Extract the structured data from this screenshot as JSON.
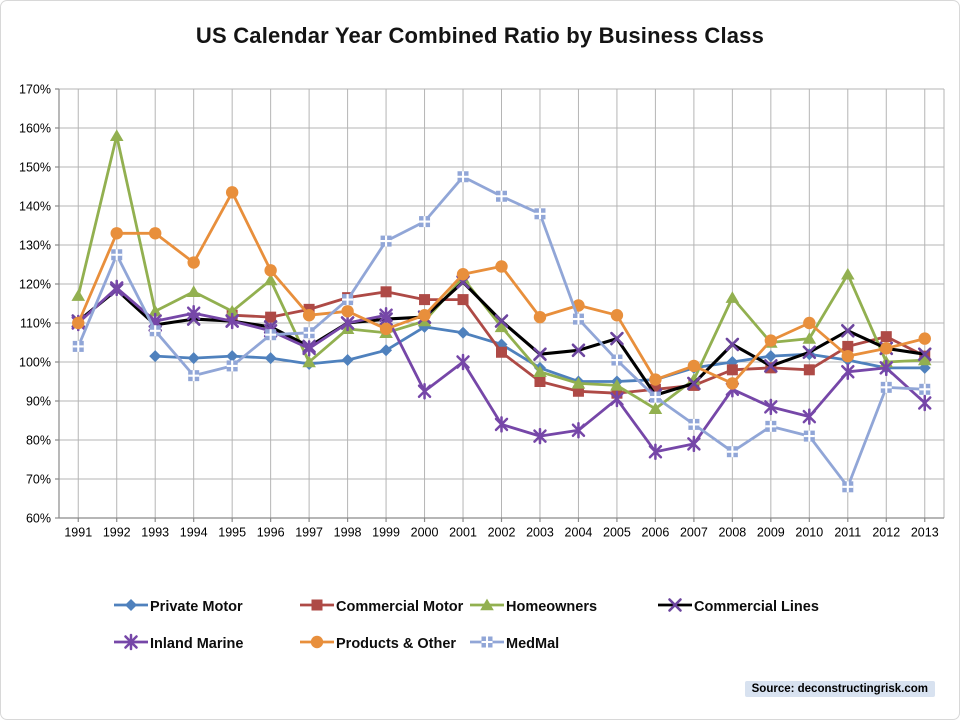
{
  "page": {
    "source_note": "Source: deconstructingrisk.com"
  },
  "chart_data": {
    "type": "line",
    "title": "US Calendar Year Combined Ratio by Business Class",
    "x": [
      1991,
      1992,
      1993,
      1994,
      1995,
      1996,
      1997,
      1998,
      1999,
      2000,
      2001,
      2002,
      2003,
      2004,
      2005,
      2006,
      2007,
      2008,
      2009,
      2010,
      2011,
      2012,
      2013
    ],
    "y_axis": {
      "min": 60,
      "max": 170,
      "step": 10,
      "unit": "%"
    },
    "grid": true,
    "grid_color": "#b5b5b5",
    "axis_color": "#8a8a8a",
    "legend_position": "bottom",
    "series": [
      {
        "name": "Private Motor",
        "color": "#4F81BD",
        "marker": "diamond",
        "values": [
          null,
          null,
          101.5,
          101,
          101.5,
          101,
          99.5,
          100.5,
          103,
          109,
          107.5,
          104.5,
          98.5,
          95,
          95,
          95.5,
          98.5,
          100,
          101.5,
          102,
          100.5,
          98.5,
          98.5
        ]
      },
      {
        "name": "Commercial Motor",
        "color": "#AE4A46",
        "marker": "square",
        "values": [
          null,
          null,
          null,
          null,
          112,
          111.5,
          113.5,
          116.5,
          118,
          116,
          116,
          102.5,
          95,
          92.5,
          92,
          93,
          94,
          98,
          98.5,
          98,
          104,
          106.5,
          101.5
        ]
      },
      {
        "name": "Homeowners",
        "color": "#92B050",
        "marker": "triangle",
        "values": [
          117,
          158,
          113,
          118,
          113,
          121,
          100,
          108.5,
          107.5,
          110.5,
          121.5,
          109,
          97.5,
          94.5,
          94,
          88,
          95.5,
          116.5,
          105,
          106,
          122.5,
          100,
          100.5
        ]
      },
      {
        "name": "Commercial Lines",
        "color": "#000000",
        "marker": "x",
        "marker_color": "#6C459E",
        "values": [
          110.5,
          118.5,
          109.5,
          111,
          110.5,
          109,
          104,
          110,
          111,
          111.5,
          120.5,
          110.5,
          102,
          103,
          106,
          91.5,
          94.5,
          104.5,
          99,
          102.5,
          108,
          103.5,
          102
        ]
      },
      {
        "name": "Inland Marine",
        "color": "#7647A8",
        "marker": "asterisk",
        "values": [
          110,
          119,
          110.5,
          112.5,
          110.5,
          108,
          103.5,
          110,
          112,
          92.5,
          100,
          84,
          81,
          82.5,
          90.5,
          77,
          79,
          93,
          88.5,
          86,
          97.5,
          98.5,
          89.5
        ]
      },
      {
        "name": "Products & Other",
        "color": "#E88F3C",
        "marker": "circle",
        "values": [
          110,
          133,
          133,
          125.5,
          143.5,
          123.5,
          112,
          113,
          108.5,
          112,
          122.5,
          124.5,
          111.5,
          114.5,
          112,
          95.5,
          99,
          94.5,
          105.5,
          110,
          101.5,
          103.5,
          106
        ]
      },
      {
        "name": "MedMal",
        "color": "#91A6D7",
        "marker": "square-cross",
        "values": [
          104,
          127.5,
          108,
          96.5,
          99,
          107,
          107.5,
          116,
          131,
          136,
          147.5,
          142.5,
          138,
          111,
          100.5,
          91,
          84,
          77,
          83.5,
          81,
          68,
          93.5,
          93
        ]
      }
    ]
  }
}
